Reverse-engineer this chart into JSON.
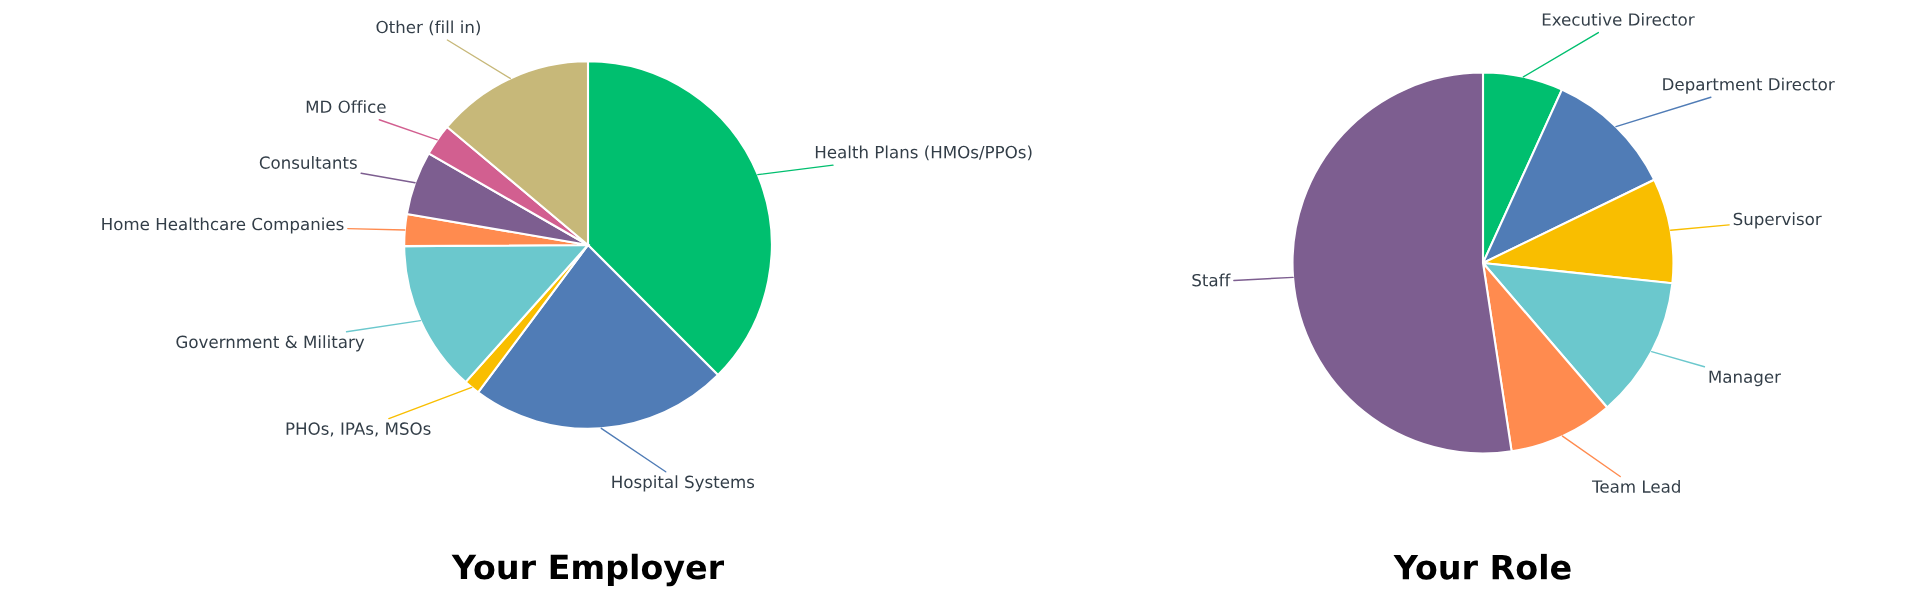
{
  "chart_data": [
    {
      "type": "pie",
      "title": "Your Employer",
      "categories": [
        "Health Plans (HMOs/PPOs)",
        "Hospital Systems",
        "PHOs, IPAs, MSOs",
        "Government & Military",
        "Home Healthcare Companies",
        "Consultants",
        "MD Office",
        "Other (fill in)"
      ],
      "values": [
        37.5,
        22.7,
        1.4,
        13.3,
        2.8,
        5.6,
        2.8,
        13.9
      ],
      "colors": [
        "#00bf6f",
        "#507cb6",
        "#f9be00",
        "#6bc8cd",
        "#ff8b4f",
        "#7d5e90",
        "#d25f90",
        "#c7b879"
      ]
    },
    {
      "type": "pie",
      "title": "Your Role",
      "categories": [
        "Executive Director",
        "Department Director",
        "Supervisor",
        "Manager",
        "Team Lead",
        "Staff"
      ],
      "values": [
        6.8,
        11,
        8.9,
        12,
        8.9,
        52.4
      ],
      "colors": [
        "#00bf6f",
        "#507cb6",
        "#f9be00",
        "#6bc8cd",
        "#ff8b4f",
        "#7d5e90"
      ]
    }
  ]
}
